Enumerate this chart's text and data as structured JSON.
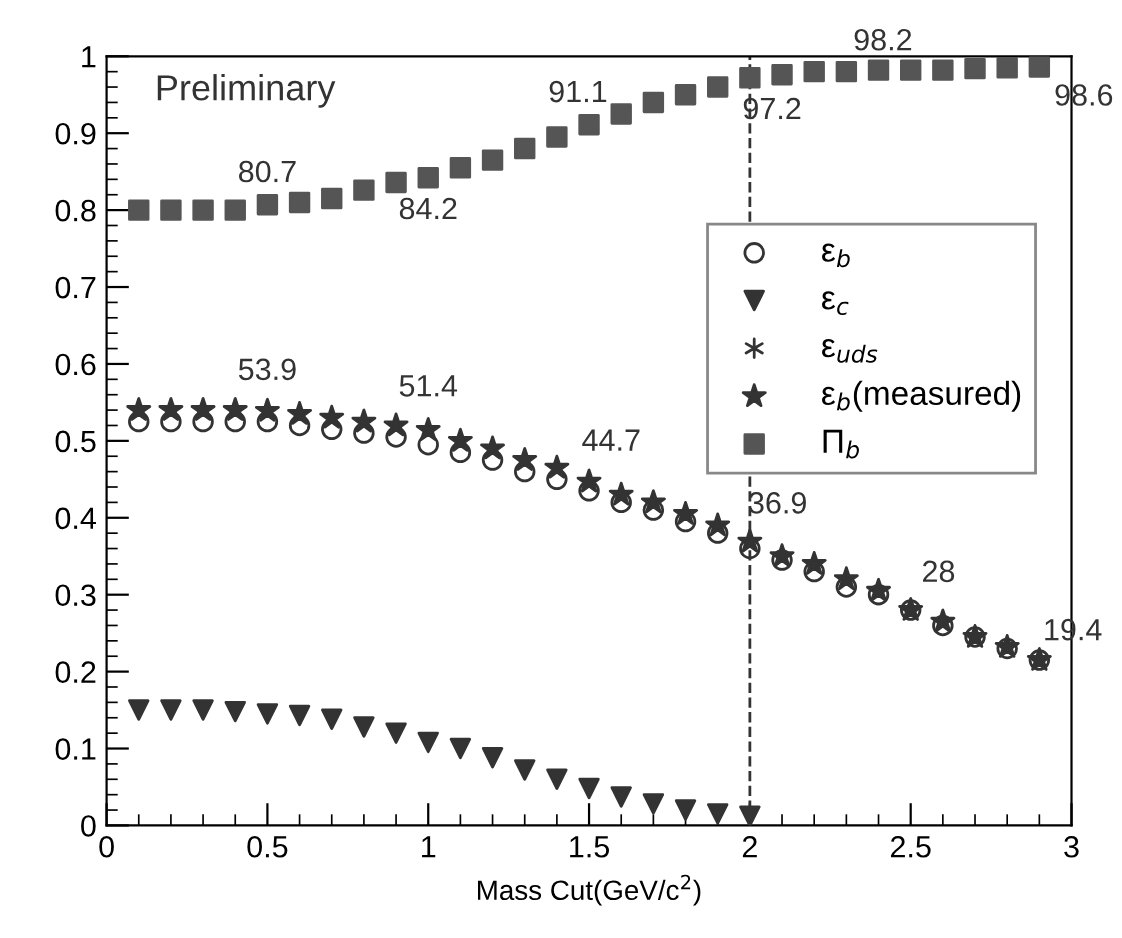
{
  "chart_data": {
    "type": "scatter",
    "xlabel": "Mass Cut(GeV/c$^{2}$)",
    "x": [
      0.1,
      0.2,
      0.3,
      0.4,
      0.5,
      0.6,
      0.7,
      0.8,
      0.9,
      1.0,
      1.1,
      1.2,
      1.3,
      1.4,
      1.5,
      1.6,
      1.7,
      1.8,
      1.9,
      2.0,
      2.1,
      2.2,
      2.3,
      2.4,
      2.5,
      2.6,
      2.7,
      2.8,
      2.9
    ],
    "series": [
      {
        "name": "ε$_{b}$",
        "color": "#333333",
        "marker": "circle",
        "values": [
          0.525,
          0.525,
          0.525,
          0.525,
          0.525,
          0.52,
          0.515,
          0.51,
          0.505,
          0.495,
          0.485,
          0.475,
          0.46,
          0.45,
          0.435,
          0.42,
          0.41,
          0.395,
          0.38,
          0.36,
          0.345,
          0.33,
          0.31,
          0.3,
          0.28,
          0.26,
          0.245,
          0.23,
          0.215
        ]
      },
      {
        "name": "ε$_{c}$",
        "color": "#333333",
        "marker": "triangle",
        "values": [
          0.15,
          0.15,
          0.15,
          0.148,
          0.145,
          0.143,
          0.138,
          0.128,
          0.12,
          0.108,
          0.1,
          0.088,
          0.072,
          0.06,
          0.048,
          0.037,
          0.028,
          0.02,
          0.015,
          0.012,
          null,
          null,
          null,
          null,
          null,
          null,
          null,
          null,
          null
        ]
      },
      {
        "name": "ε$_{uds}$",
        "color": "#333333",
        "marker": "cross",
        "values": [
          null,
          null,
          null,
          null,
          null,
          null,
          null,
          null,
          null,
          null,
          null,
          null,
          null,
          null,
          null,
          null,
          null,
          null,
          null,
          null,
          null,
          null,
          null,
          null,
          null,
          null,
          null,
          null,
          null
        ]
      },
      {
        "name": "ε$_{b}$(measured)",
        "color": "#333333",
        "marker": "star",
        "values": [
          0.54,
          0.54,
          0.54,
          0.54,
          0.539,
          0.535,
          0.53,
          0.525,
          0.52,
          0.514,
          0.5,
          0.49,
          0.475,
          0.465,
          0.447,
          0.43,
          0.42,
          0.405,
          0.39,
          0.369,
          0.35,
          0.34,
          0.32,
          0.305,
          0.28,
          0.265,
          0.245,
          0.232,
          0.215
        ]
      },
      {
        "name": "Π$_{b}$",
        "color": "#555555",
        "marker": "square",
        "values": [
          0.8,
          0.8,
          0.8,
          0.8,
          0.807,
          0.81,
          0.815,
          0.826,
          0.836,
          0.842,
          0.855,
          0.865,
          0.88,
          0.895,
          0.911,
          0.925,
          0.94,
          0.95,
          0.96,
          0.972,
          0.976,
          0.98,
          0.98,
          0.982,
          0.982,
          0.982,
          0.984,
          0.985,
          0.986
        ]
      }
    ],
    "xlim": [
      0,
      3
    ],
    "ylim": [
      0,
      1
    ],
    "xticks": [
      0,
      0.5,
      1,
      1.5,
      2,
      2.5,
      3
    ],
    "yticks": [
      0,
      0.1,
      0.2,
      0.3,
      0.4,
      0.5,
      0.6,
      0.7,
      0.8,
      0.9,
      1
    ],
    "ref_lines": [
      {
        "axis": "x",
        "value": 2,
        "label": null,
        "color": "#333333",
        "line_style": "dashed"
      }
    ],
    "annotations": [
      "Preliminary",
      {
        "text": "80.7",
        "x": 0.5,
        "y": 0.807
      },
      {
        "text": "84.2",
        "x": 1.0,
        "y": 0.842
      },
      {
        "text": "91.1",
        "x": 1.5,
        "y": 0.911
      },
      {
        "text": "97.2",
        "x": 2.0,
        "y": 0.972
      },
      {
        "text": "98.2",
        "x": 2.5,
        "y": 0.982
      },
      {
        "text": "98.6",
        "x": 2.9,
        "y": 0.986
      },
      {
        "text": "53.9",
        "x": 0.5,
        "y": 0.539
      },
      {
        "text": "51.4",
        "x": 1.0,
        "y": 0.514
      },
      {
        "text": "44.7",
        "x": 1.5,
        "y": 0.447
      },
      {
        "text": "36.9",
        "x": 2.0,
        "y": 0.369
      },
      {
        "text": "28",
        "x": 2.5,
        "y": 0.28
      },
      {
        "text": "19.4",
        "x": 2.9,
        "y": 0.215
      }
    ],
    "legend": "right",
    "grid": false
  }
}
